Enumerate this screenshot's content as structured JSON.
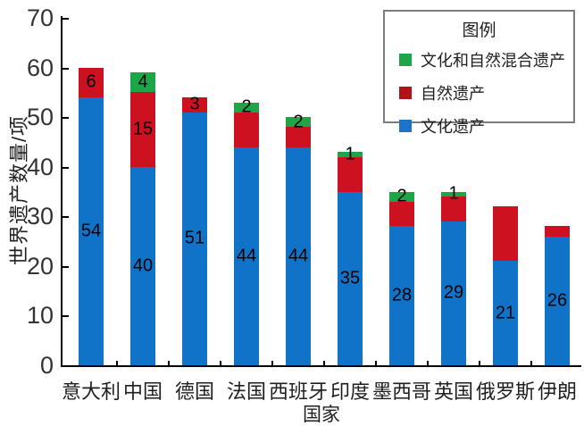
{
  "chart_data": {
    "type": "bar",
    "stacked": true,
    "title": "",
    "xlabel": "国家",
    "ylabel": "世界遗产数量/项",
    "ylim": [
      0,
      70
    ],
    "yticks": [
      0,
      10,
      20,
      30,
      40,
      50,
      60,
      70
    ],
    "grid": false,
    "categories": [
      "意大利",
      "中国",
      "德国",
      "法国",
      "西班牙",
      "印度",
      "墨西哥",
      "英国",
      "俄罗斯",
      "伊朗"
    ],
    "series": [
      {
        "name": "文化遗产",
        "key": "cultural",
        "color": "#1173C8",
        "values": [
          54,
          40,
          51,
          44,
          44,
          35,
          28,
          29,
          21,
          26
        ],
        "labels": [
          "54",
          "40",
          "51",
          "44",
          "44",
          "35",
          "28",
          "29",
          "21",
          "26"
        ]
      },
      {
        "name": "自然遗产",
        "key": "natural",
        "color": "#CE1120",
        "values": [
          6,
          15,
          3,
          7,
          4,
          7,
          5,
          5,
          11,
          2
        ],
        "labels": [
          "6",
          "15",
          "3",
          "",
          "",
          "",
          "",
          "",
          "",
          ""
        ]
      },
      {
        "name": "文化和自然混合遗产",
        "key": "mixed",
        "color": "#1CA648",
        "values": [
          0,
          4,
          0,
          2,
          2,
          1,
          2,
          1,
          0,
          0
        ],
        "labels": [
          "",
          "4",
          "",
          "2",
          "2",
          "1",
          "2",
          "1",
          "",
          ""
        ]
      }
    ],
    "totals": [
      60,
      59,
      54,
      53,
      50,
      43,
      35,
      35,
      32,
      28
    ],
    "legend": {
      "title": "图例",
      "position": "top-right",
      "entries": [
        {
          "label": "文化和自然混合遗产",
          "swatch": "#1CA648"
        },
        {
          "label": "自然遗产",
          "swatch": "#B01218"
        },
        {
          "label": "文化遗产",
          "swatch": "#1B74C8"
        }
      ]
    }
  }
}
